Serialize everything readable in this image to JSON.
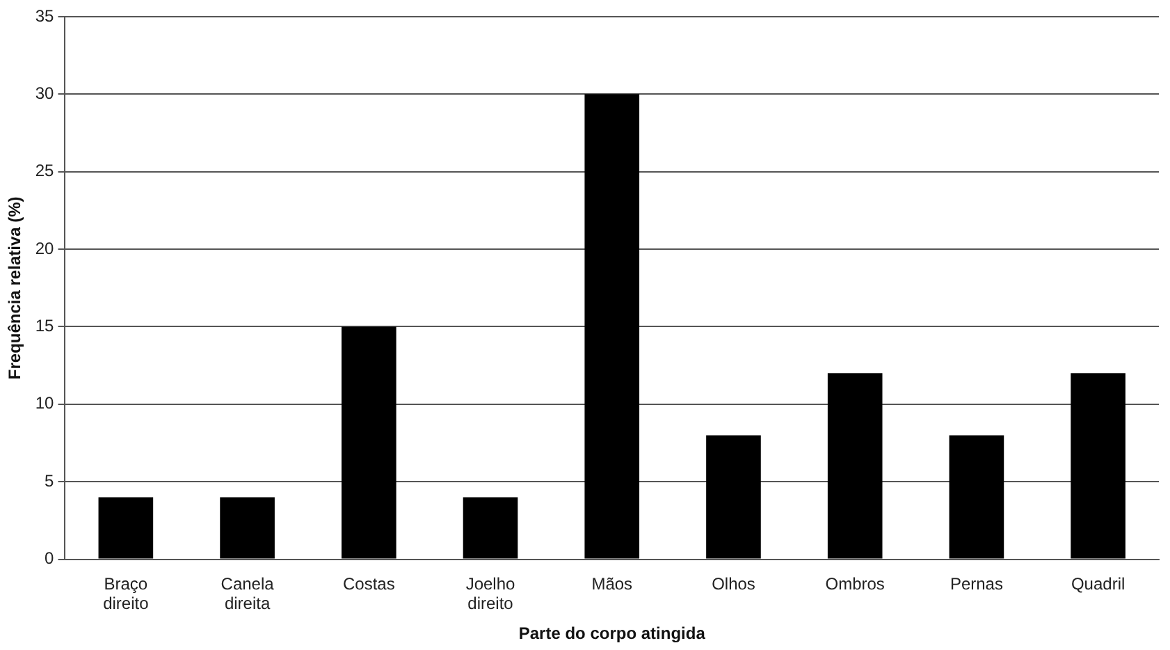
{
  "chart_data": {
    "type": "bar",
    "xlabel": "Parte do corpo atingida",
    "ylabel": "Frequência relativa (%)",
    "categories": [
      "Braço direito",
      "Canela direita",
      "Costas",
      "Joelho direito",
      "Mãos",
      "Olhos",
      "Ombros",
      "Pernas",
      "Quadril"
    ],
    "values": [
      4,
      4,
      15,
      4,
      30,
      8,
      12,
      8,
      12
    ],
    "color": "#000000",
    "ylim": [
      0,
      35
    ],
    "yticks": [
      0,
      5,
      10,
      15,
      20,
      25,
      30,
      35
    ],
    "grid": "y",
    "legend": false
  }
}
